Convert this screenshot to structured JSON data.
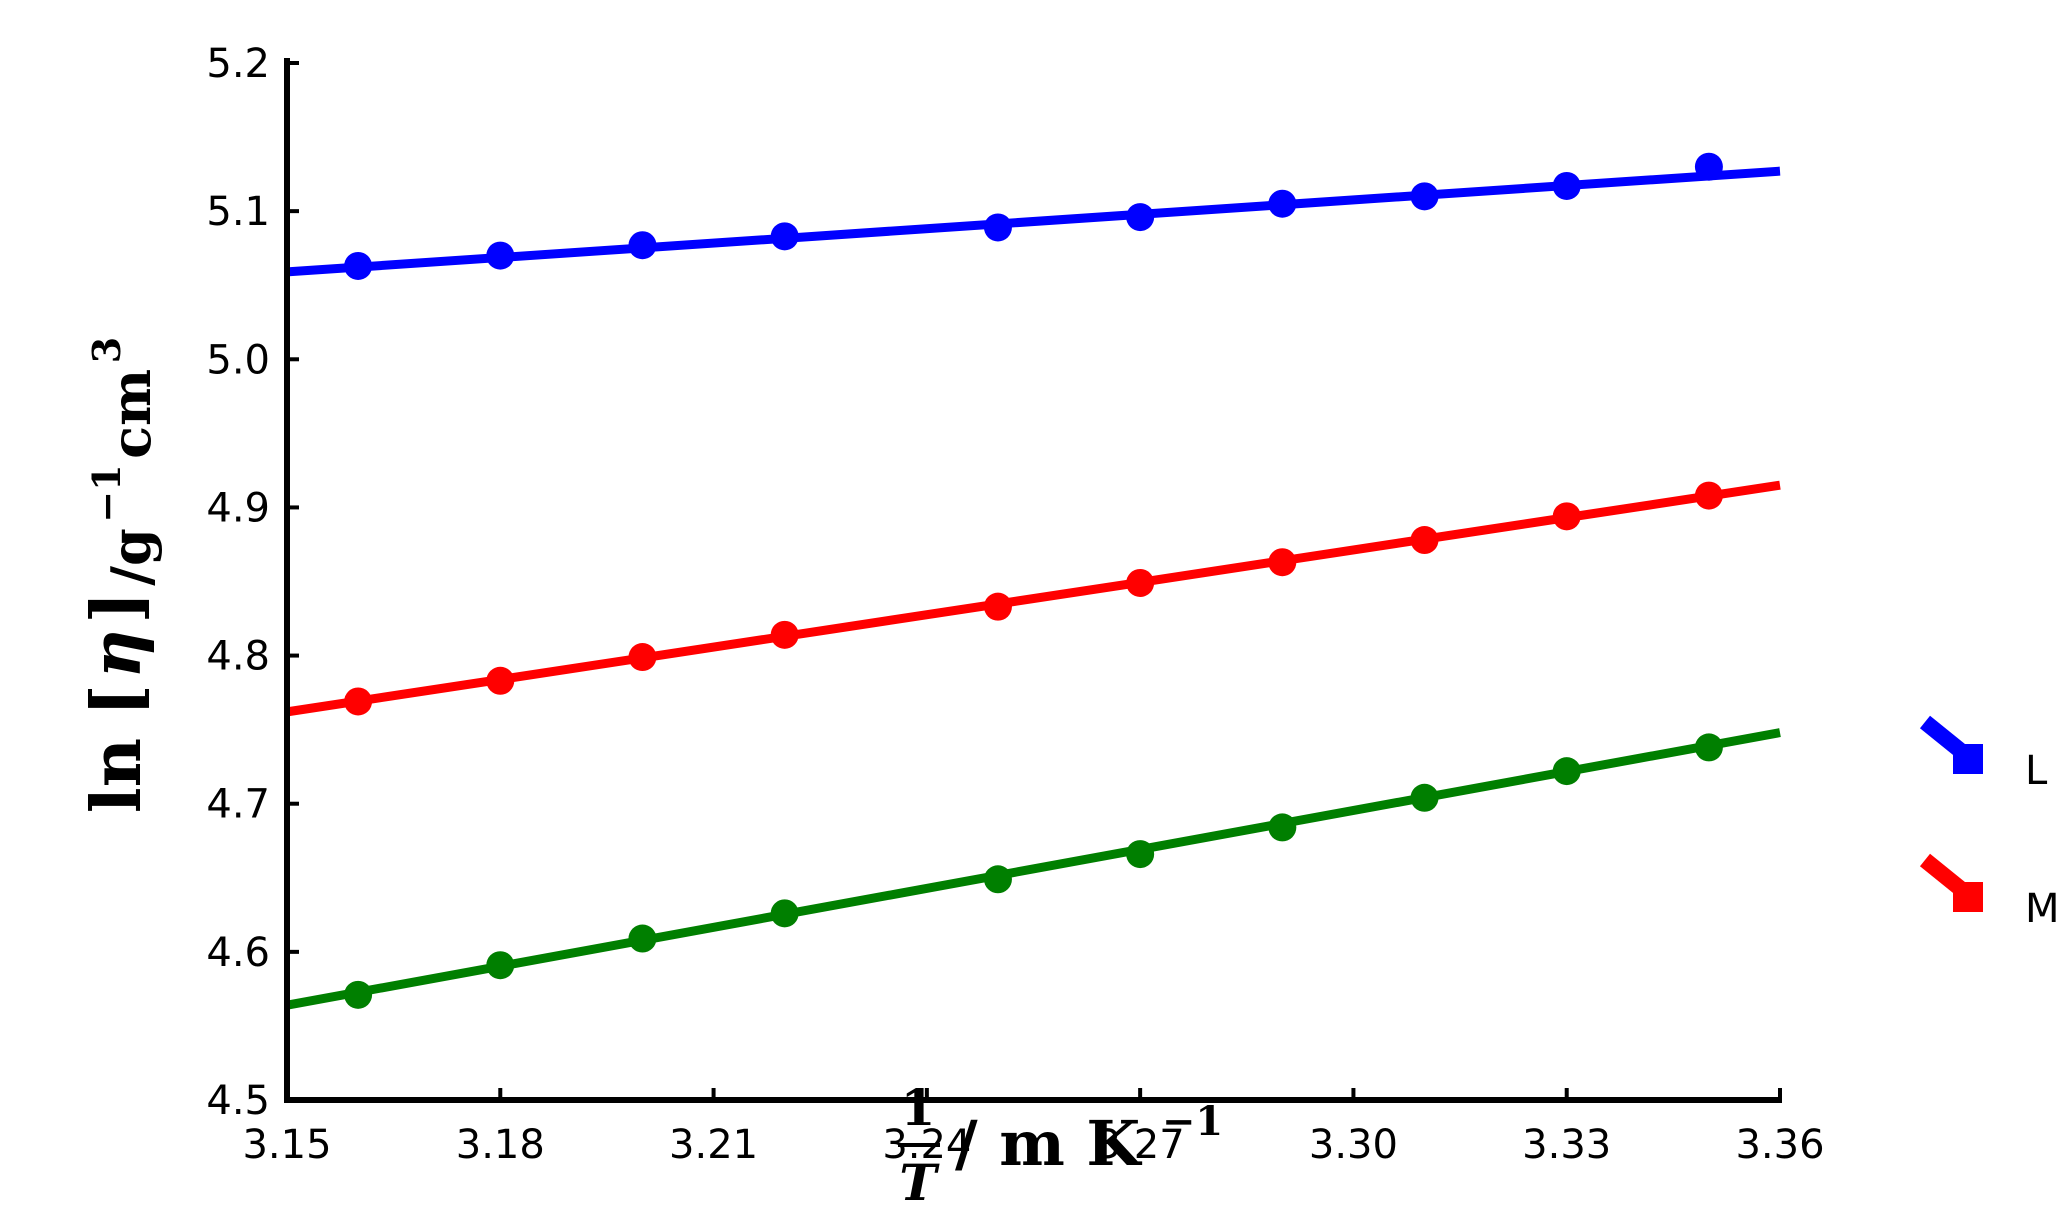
{
  "chart_data": {
    "type": "scatter",
    "xlim": [
      3.15,
      3.36
    ],
    "ylim": [
      4.5,
      5.2
    ],
    "x_ticks": [
      "3.15",
      "3.18",
      "3.21",
      "3.24",
      "3.27",
      "3.30",
      "3.33",
      "3.36"
    ],
    "y_ticks": [
      "4.5",
      "4.6",
      "4.7",
      "4.8",
      "4.9",
      "5.0",
      "5.1",
      "5.2"
    ],
    "ylabel": {
      "prefix": "ln",
      "eta": "η",
      "unit_base": "/g",
      "unit_exp1": "−1",
      "unit_cm": "cm",
      "unit_exp2": "3"
    },
    "xlabel": {
      "numerator": "1",
      "denominator": "T",
      "unit": "/ m K",
      "unit_exp": "−1"
    },
    "series": [
      {
        "color": "#0000ff",
        "legend_label": "L",
        "x": [
          3.16,
          3.18,
          3.2,
          3.22,
          3.25,
          3.27,
          3.29,
          3.31,
          3.33,
          3.35
        ],
        "y": [
          5.063,
          5.07,
          5.077,
          5.083,
          5.089,
          5.096,
          5.105,
          5.11,
          5.117,
          5.13
        ],
        "fit": [
          5.059,
          5.127
        ]
      },
      {
        "color": "#ff0000",
        "legend_label": "M",
        "x": [
          3.16,
          3.18,
          3.2,
          3.22,
          3.25,
          3.27,
          3.29,
          3.31,
          3.33,
          3.35
        ],
        "y": [
          4.769,
          4.783,
          4.799,
          4.814,
          4.833,
          4.849,
          4.863,
          4.878,
          4.894,
          4.908
        ],
        "fit": [
          4.762,
          4.915
        ]
      },
      {
        "color": "#007f00",
        "x": [
          3.16,
          3.18,
          3.2,
          3.22,
          3.25,
          3.27,
          3.29,
          3.31,
          3.33,
          3.35
        ],
        "y": [
          4.571,
          4.591,
          4.609,
          4.626,
          4.649,
          4.666,
          4.684,
          4.704,
          4.722,
          4.738
        ],
        "fit": [
          4.564,
          4.748
        ]
      }
    ]
  }
}
